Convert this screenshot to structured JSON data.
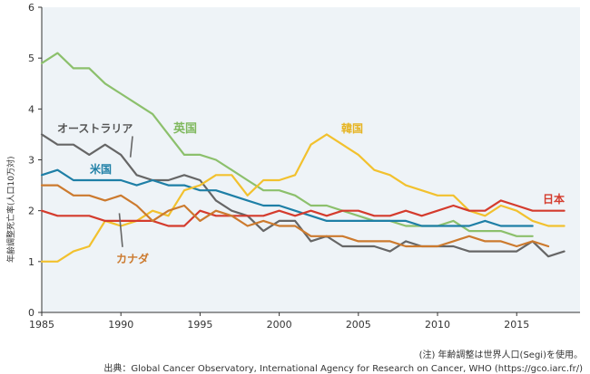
{
  "chart_data": {
    "type": "line",
    "title": "",
    "xlabel": "",
    "ylabel": "年齢調整死亡率(人口10万対)",
    "xlim": [
      1985,
      2019
    ],
    "ylim": [
      0,
      6
    ],
    "x_ticks": [
      1985,
      1990,
      1995,
      2000,
      2005,
      2010,
      2015
    ],
    "y_ticks": [
      0,
      1,
      2,
      3,
      4,
      5,
      6
    ],
    "grid": false,
    "x": [
      1985,
      1986,
      1987,
      1988,
      1989,
      1990,
      1991,
      1992,
      1993,
      1994,
      1995,
      1996,
      1997,
      1998,
      1999,
      2000,
      2001,
      2002,
      2003,
      2004,
      2005,
      2006,
      2007,
      2008,
      2009,
      2010,
      2011,
      2012,
      2013,
      2014,
      2015,
      2016,
      2017,
      2018
    ],
    "series": [
      {
        "name": "英国",
        "color": "#8cc06c",
        "values": [
          4.9,
          5.1,
          4.8,
          4.8,
          4.5,
          4.3,
          4.1,
          3.9,
          3.5,
          3.1,
          3.1,
          3.0,
          2.8,
          2.6,
          2.4,
          2.4,
          2.3,
          2.1,
          2.1,
          2.0,
          1.9,
          1.8,
          1.8,
          1.7,
          1.7,
          1.7,
          1.8,
          1.6,
          1.6,
          1.6,
          1.5,
          1.5,
          null,
          null
        ]
      },
      {
        "name": "オーストラリア",
        "color": "#666666",
        "values": [
          3.5,
          3.3,
          3.3,
          3.1,
          3.3,
          3.1,
          2.7,
          2.6,
          2.6,
          2.7,
          2.6,
          2.2,
          2.0,
          1.9,
          1.6,
          1.8,
          1.8,
          1.4,
          1.5,
          1.3,
          1.3,
          1.3,
          1.2,
          1.4,
          1.3,
          1.3,
          1.3,
          1.2,
          1.2,
          1.2,
          1.2,
          1.4,
          1.1,
          1.2
        ]
      },
      {
        "name": "米国",
        "color": "#1e7fa6",
        "values": [
          2.7,
          2.8,
          2.6,
          2.6,
          2.6,
          2.6,
          2.5,
          2.6,
          2.5,
          2.5,
          2.4,
          2.4,
          2.3,
          2.2,
          2.1,
          2.1,
          2.0,
          1.9,
          1.8,
          1.8,
          1.8,
          1.8,
          1.8,
          1.8,
          1.7,
          1.7,
          1.7,
          1.7,
          1.8,
          1.7,
          1.7,
          1.7,
          null,
          null
        ]
      },
      {
        "name": "韓国",
        "color": "#f2c12e",
        "values": [
          1.0,
          1.0,
          1.2,
          1.3,
          1.8,
          1.7,
          1.8,
          2.0,
          1.9,
          2.4,
          2.5,
          2.7,
          2.7,
          2.3,
          2.6,
          2.6,
          2.7,
          3.3,
          3.5,
          3.3,
          3.1,
          2.8,
          2.7,
          2.5,
          2.4,
          2.3,
          2.3,
          2.0,
          1.9,
          2.1,
          2.0,
          1.8,
          1.7,
          1.7
        ]
      },
      {
        "name": "日本",
        "color": "#d43b2d",
        "values": [
          2.0,
          1.9,
          1.9,
          1.9,
          1.8,
          1.8,
          1.8,
          1.8,
          1.7,
          1.7,
          2.0,
          1.9,
          1.9,
          1.9,
          1.9,
          2.0,
          1.9,
          2.0,
          1.9,
          2.0,
          2.0,
          1.9,
          1.9,
          2.0,
          1.9,
          2.0,
          2.1,
          2.0,
          2.0,
          2.2,
          2.1,
          2.0,
          2.0,
          2.0
        ]
      },
      {
        "name": "カナダ",
        "color": "#cc7a2e",
        "values": [
          2.5,
          2.5,
          2.3,
          2.3,
          2.2,
          2.3,
          2.1,
          1.8,
          2.0,
          2.1,
          1.8,
          2.0,
          1.9,
          1.7,
          1.8,
          1.7,
          1.7,
          1.5,
          1.5,
          1.5,
          1.4,
          1.4,
          1.4,
          1.3,
          1.3,
          1.3,
          1.4,
          1.5,
          1.4,
          1.4,
          1.3,
          1.4,
          1.3,
          null
        ]
      }
    ]
  },
  "labels": {
    "uk": "英国",
    "australia": "オーストラリア",
    "us": "米国",
    "korea": "韓国",
    "japan": "日本",
    "canada": "カナダ"
  },
  "footnote": "(注) 年齢調整は世界人口(Segi)を使用。",
  "source": "出典：Global Cancer Observatory, International Agency for Research on Cancer, WHO (https://gco.iarc.fr/)"
}
